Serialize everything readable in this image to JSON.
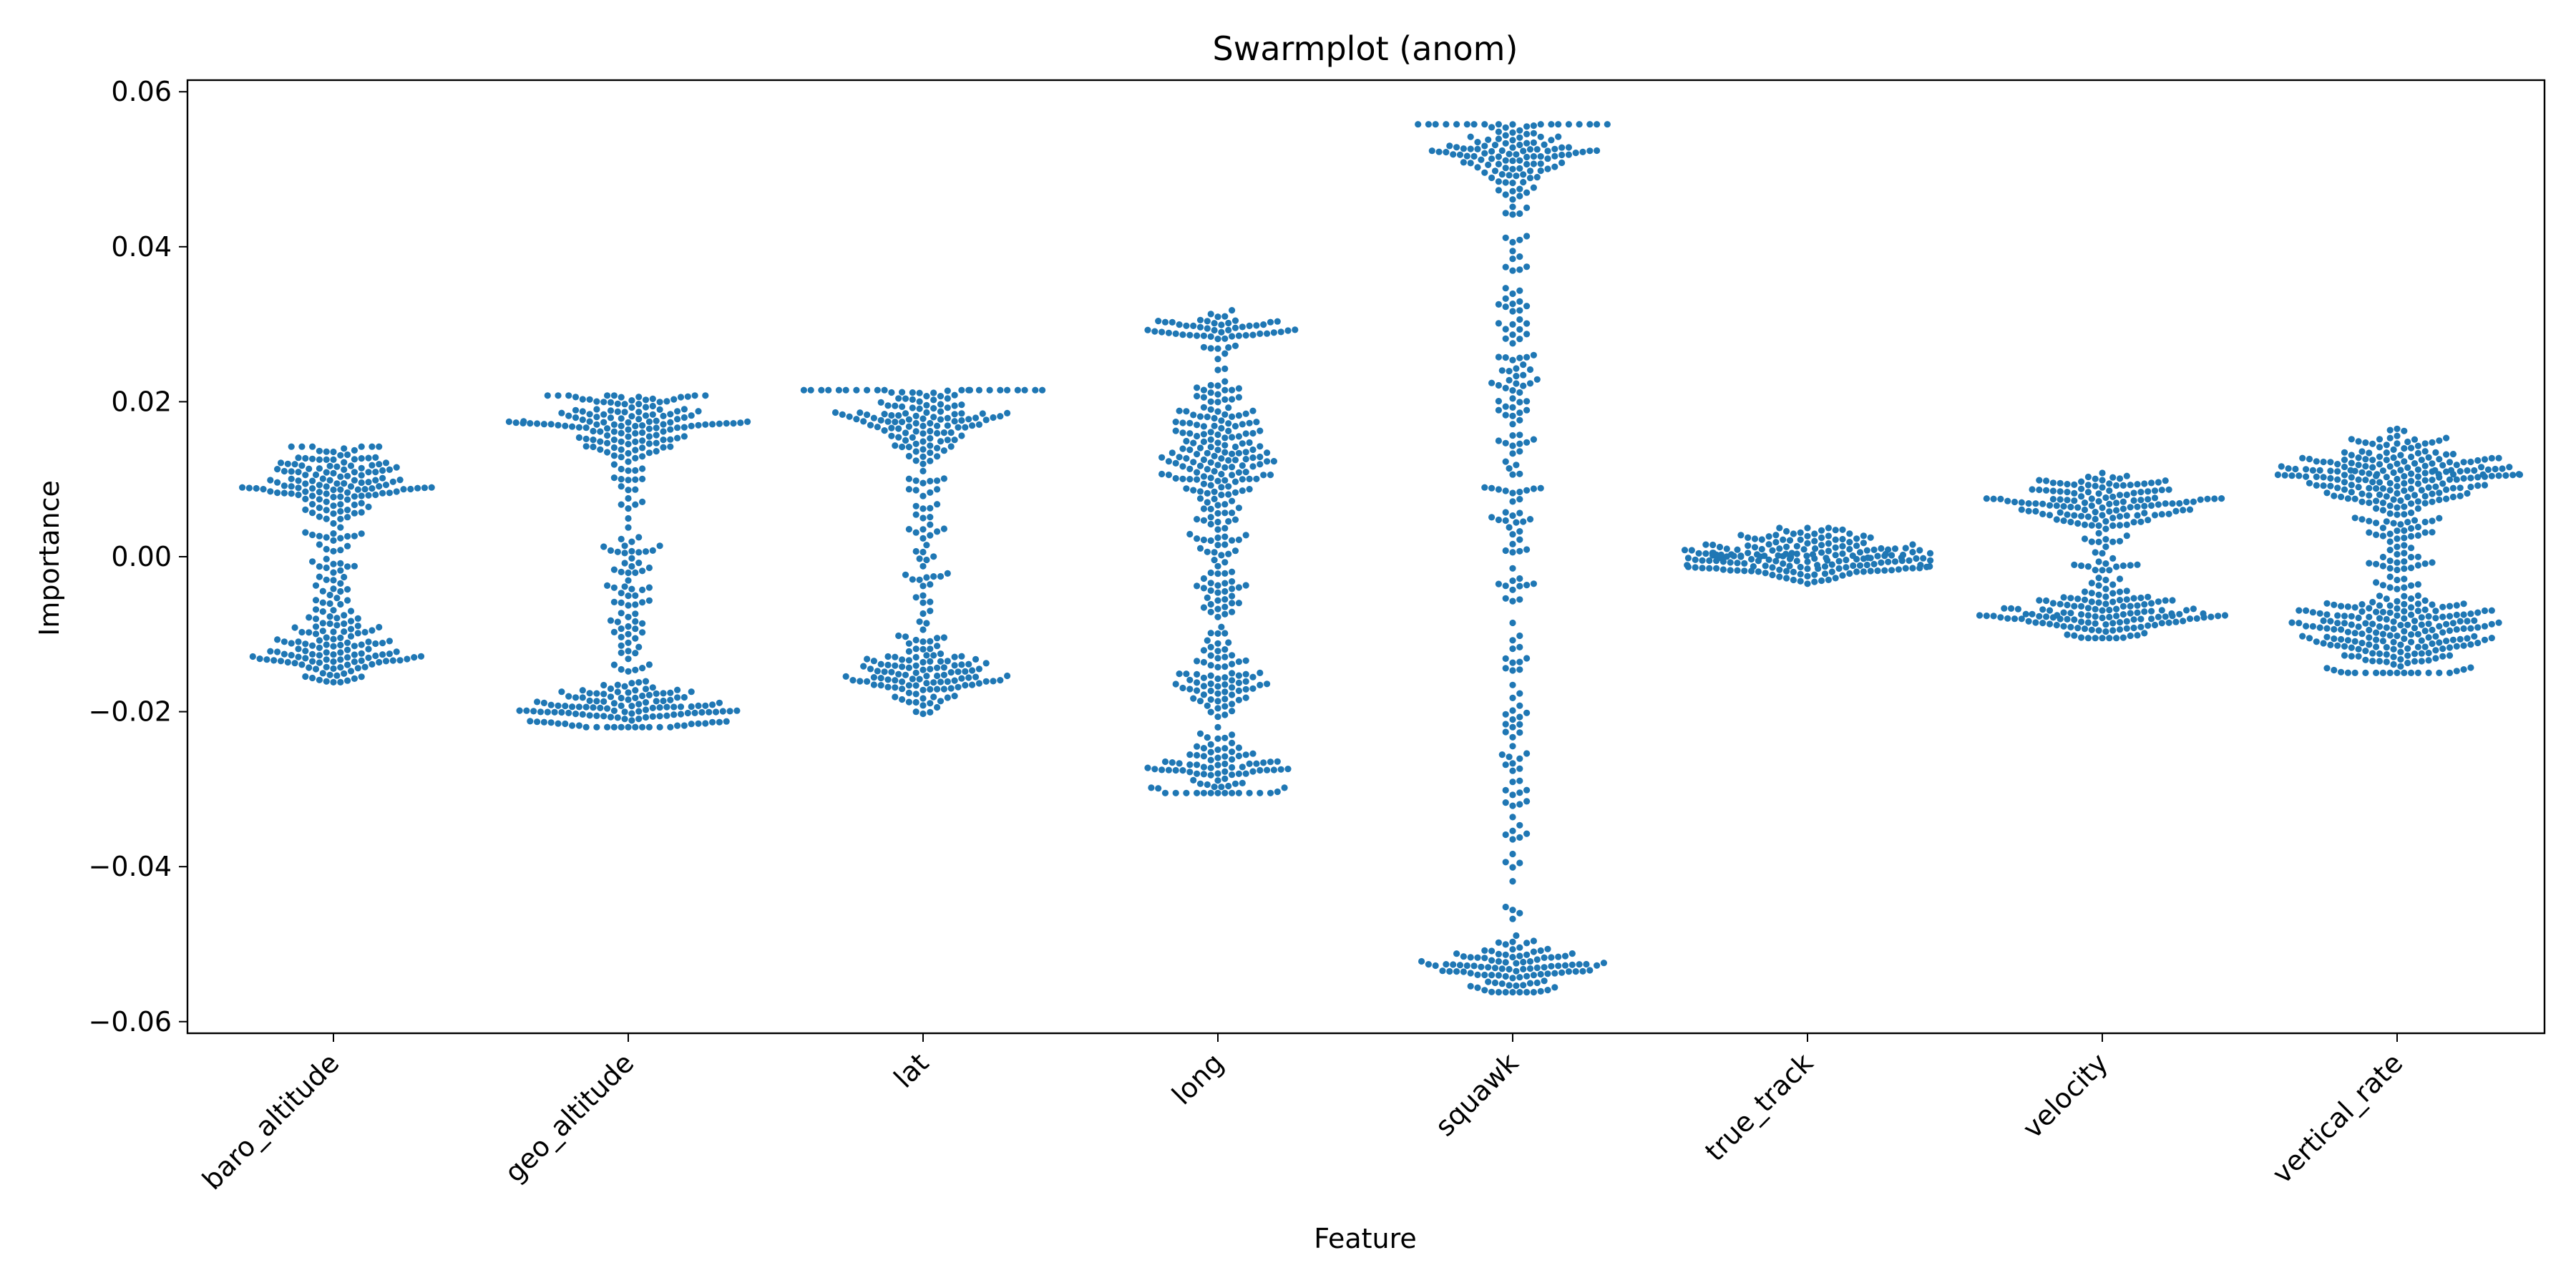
{
  "chart_data": {
    "type": "scatter",
    "subtype": "swarm",
    "title": "Swarmplot (anom)",
    "xlabel": "Feature",
    "ylabel": "Importance",
    "ylim": [
      -0.0615,
      0.0615
    ],
    "yticks": [
      -0.06,
      -0.04,
      -0.02,
      0.0,
      0.02,
      0.04,
      0.06
    ],
    "ytick_labels": [
      "−0.06",
      "−0.04",
      "−0.02",
      "0.00",
      "0.02",
      "0.04",
      "0.06"
    ],
    "categories": [
      "baro_altitude",
      "geo_altitude",
      "lat",
      "long",
      "squawk",
      "true_track",
      "velocity",
      "vertical_rate"
    ],
    "grid": false,
    "legend": "none",
    "marker_color": "#1f77b4",
    "distributions": [
      {
        "category": "baro_altitude",
        "points": 300,
        "range": [
          -0.0162,
          0.0142
        ],
        "clusters": [
          {
            "center": 0.01,
            "spread": 0.0025,
            "share": 0.4
          },
          {
            "center": -0.0125,
            "spread": 0.0022,
            "share": 0.3
          },
          {
            "center": -0.001,
            "spread": 0.0075,
            "share": 0.3
          }
        ]
      },
      {
        "category": "geo_altitude",
        "points": 360,
        "range": [
          -0.022,
          0.0208
        ],
        "clusters": [
          {
            "center": 0.0168,
            "spread": 0.0025,
            "share": 0.4
          },
          {
            "center": -0.0195,
            "spread": 0.002,
            "share": 0.35
          },
          {
            "center": -0.002,
            "spread": 0.0095,
            "share": 0.25
          }
        ]
      },
      {
        "category": "lat",
        "points": 300,
        "range": [
          -0.0215,
          0.0215
        ],
        "clusters": [
          {
            "center": 0.018,
            "spread": 0.0027,
            "share": 0.4
          },
          {
            "center": -0.0155,
            "spread": 0.0022,
            "share": 0.35
          },
          {
            "center": 0.0005,
            "spread": 0.0095,
            "share": 0.25
          }
        ]
      },
      {
        "category": "long",
        "points": 440,
        "range": [
          -0.0305,
          0.0318
        ],
        "clusters": [
          {
            "center": 0.029,
            "spread": 0.0012,
            "share": 0.13
          },
          {
            "center": 0.014,
            "spread": 0.0045,
            "share": 0.32
          },
          {
            "center": -0.0005,
            "spread": 0.008,
            "share": 0.22
          },
          {
            "center": -0.017,
            "spread": 0.002,
            "share": 0.13
          },
          {
            "center": -0.0275,
            "spread": 0.0025,
            "share": 0.2
          }
        ]
      },
      {
        "category": "squawk",
        "points": 420,
        "range": [
          -0.0562,
          0.0558
        ],
        "clusters": [
          {
            "center": 0.052,
            "spread": 0.003,
            "share": 0.28
          },
          {
            "center": 0.025,
            "spread": 0.015,
            "share": 0.26
          },
          {
            "center": -0.02,
            "spread": 0.016,
            "share": 0.22
          },
          {
            "center": -0.053,
            "spread": 0.002,
            "share": 0.24
          }
        ]
      },
      {
        "category": "true_track",
        "points": 200,
        "range": [
          -0.0035,
          0.0037
        ],
        "clusters": [
          {
            "center": 0.0,
            "spread": 0.0016,
            "share": 1.0
          }
        ]
      },
      {
        "category": "velocity",
        "points": 300,
        "range": [
          -0.0105,
          0.0108
        ],
        "clusters": [
          {
            "center": 0.007,
            "spread": 0.0018,
            "share": 0.42
          },
          {
            "center": -0.0075,
            "spread": 0.0016,
            "share": 0.43
          },
          {
            "center": 0.0,
            "spread": 0.004,
            "share": 0.15
          }
        ]
      },
      {
        "category": "vertical_rate",
        "points": 480,
        "range": [
          -0.015,
          0.0165
        ],
        "clusters": [
          {
            "center": 0.0105,
            "spread": 0.0025,
            "share": 0.42
          },
          {
            "center": -0.0095,
            "spread": 0.003,
            "share": 0.42
          },
          {
            "center": 0.001,
            "spread": 0.0065,
            "share": 0.16
          }
        ]
      }
    ]
  }
}
